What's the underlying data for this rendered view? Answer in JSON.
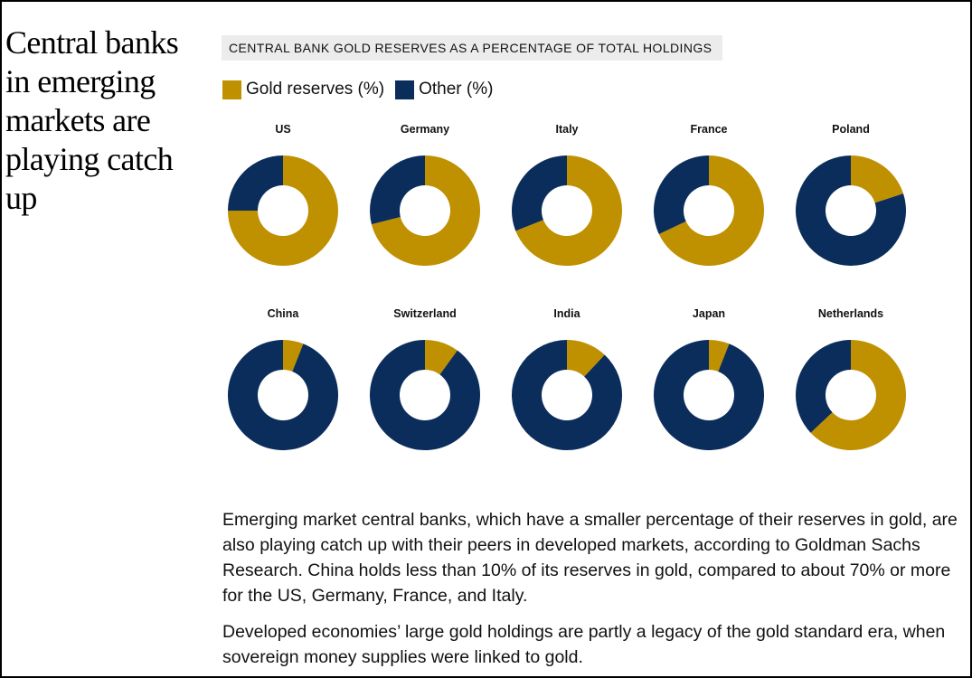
{
  "headline": "Central banks in emerging markets are playing catch up",
  "colors": {
    "gold": "#BF9000",
    "other": "#0B2D5B"
  },
  "chart_data": {
    "type": "pie",
    "title": "CENTRAL BANK GOLD RESERVES AS A PERCENTAGE OF TOTAL HOLDINGS",
    "legend": [
      "Gold reserves (%)",
      "Other (%)"
    ],
    "legend_position": "top-left",
    "series": [
      {
        "name": "US",
        "gold": 75,
        "other": 25
      },
      {
        "name": "Germany",
        "gold": 71,
        "other": 29
      },
      {
        "name": "Italy",
        "gold": 69,
        "other": 31
      },
      {
        "name": "France",
        "gold": 68,
        "other": 32
      },
      {
        "name": "Poland",
        "gold": 20,
        "other": 80
      },
      {
        "name": "China",
        "gold": 6,
        "other": 94
      },
      {
        "name": "Switzerland",
        "gold": 10,
        "other": 90
      },
      {
        "name": "India",
        "gold": 12,
        "other": 88
      },
      {
        "name": "Japan",
        "gold": 6,
        "other": 94
      },
      {
        "name": "Netherlands",
        "gold": 63,
        "other": 37
      }
    ]
  },
  "body": {
    "p1": "Emerging market central banks, which have a smaller percentage of their reserves in gold, are also playing catch up with their peers in developed markets, according to Goldman Sachs Research. China holds less than 10% of its reserves in gold, compared to about 70% or more for the US, Germany, France, and Italy.",
    "p2": "Developed economies’ large gold holdings are partly a legacy of the gold standard era, when sovereign money supplies were linked to gold."
  }
}
